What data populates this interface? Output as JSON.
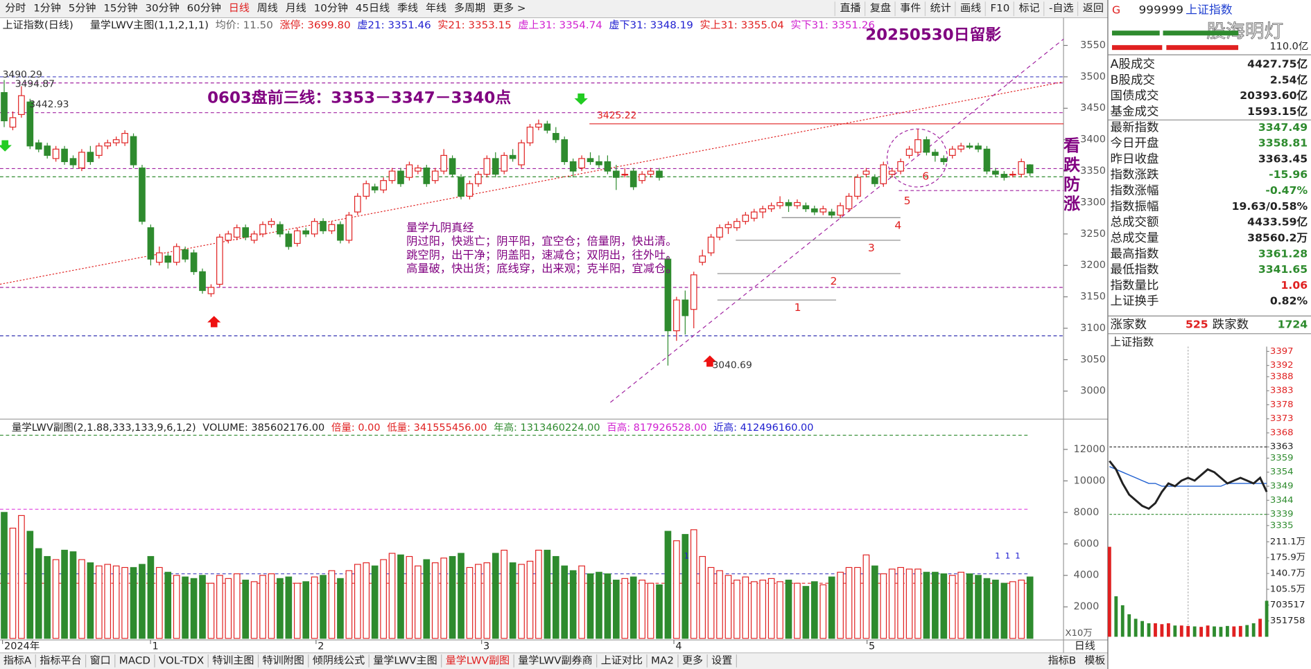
{
  "toolbar": {
    "left": [
      "分时",
      "1分钟",
      "5分钟",
      "15分钟",
      "30分钟",
      "60分钟",
      "日线",
      "周线",
      "月线",
      "10分钟",
      "45日线",
      "季线",
      "年线",
      "多周期",
      "更多 >"
    ],
    "right": [
      "直播",
      "复盘",
      "事件",
      "统计",
      "画线",
      "F10",
      "标记",
      "-自选",
      "返回"
    ]
  },
  "chart_header": {
    "title": "上证指数(日线)",
    "indicator": "量学LWV主图(1,1,2,1,1)",
    "items": [
      "均价: 11.50",
      "涨停: 3699.80",
      "虚21: 3351.46",
      "实21: 3353.15",
      "虚上31: 3354.74",
      "虚下31: 3348.19",
      "实上31: 3355.04",
      "实下31: 3351.26"
    ]
  },
  "main_chart": {
    "type": "candlestick",
    "ylim": [
      2958,
      3594
    ],
    "yticks": [
      3000,
      3050,
      3100,
      3150,
      3200,
      3250,
      3300,
      3350,
      3400,
      3450,
      3500,
      3550
    ],
    "up_color": "#e02020",
    "down_color": "#2e8b2e",
    "candles": [
      [
        3475,
        3495,
        3420,
        3430
      ],
      [
        3420,
        3445,
        3415,
        3435
      ],
      [
        3440,
        3485,
        3435,
        3470
      ],
      [
        3460,
        3465,
        3385,
        3390
      ],
      [
        3395,
        3400,
        3380,
        3385
      ],
      [
        3390,
        3395,
        3370,
        3375
      ],
      [
        3370,
        3390,
        3365,
        3385
      ],
      [
        3385,
        3390,
        3360,
        3365
      ],
      [
        3370,
        3375,
        3355,
        3360
      ],
      [
        3355,
        3385,
        3350,
        3380
      ],
      [
        3380,
        3390,
        3360,
        3365
      ],
      [
        3375,
        3395,
        3370,
        3390
      ],
      [
        3390,
        3400,
        3385,
        3395
      ],
      [
        3395,
        3405,
        3390,
        3400
      ],
      [
        3395,
        3415,
        3390,
        3410
      ],
      [
        3405,
        3410,
        3355,
        3360
      ],
      [
        3355,
        3360,
        3265,
        3270
      ],
      [
        3260,
        3265,
        3200,
        3210
      ],
      [
        3205,
        3230,
        3200,
        3220
      ],
      [
        3215,
        3220,
        3195,
        3205
      ],
      [
        3205,
        3235,
        3200,
        3230
      ],
      [
        3225,
        3230,
        3205,
        3210
      ],
      [
        3220,
        3225,
        3185,
        3190
      ],
      [
        3190,
        3195,
        3155,
        3160
      ],
      [
        3155,
        3170,
        3150,
        3165
      ],
      [
        3170,
        3250,
        3165,
        3245
      ],
      [
        3240,
        3255,
        3235,
        3250
      ],
      [
        3245,
        3265,
        3240,
        3260
      ],
      [
        3260,
        3265,
        3240,
        3245
      ],
      [
        3240,
        3255,
        3235,
        3250
      ],
      [
        3250,
        3270,
        3245,
        3265
      ],
      [
        3265,
        3275,
        3260,
        3270
      ],
      [
        3265,
        3270,
        3245,
        3250
      ],
      [
        3250,
        3255,
        3225,
        3230
      ],
      [
        3235,
        3260,
        3230,
        3255
      ],
      [
        3255,
        3260,
        3245,
        3250
      ],
      [
        3250,
        3275,
        3245,
        3270
      ],
      [
        3270,
        3275,
        3250,
        3255
      ],
      [
        3255,
        3270,
        3250,
        3265
      ],
      [
        3265,
        3270,
        3235,
        3240
      ],
      [
        3240,
        3285,
        3235,
        3280
      ],
      [
        3285,
        3315,
        3280,
        3310
      ],
      [
        3310,
        3335,
        3305,
        3330
      ],
      [
        3325,
        3330,
        3315,
        3320
      ],
      [
        3320,
        3340,
        3315,
        3335
      ],
      [
        3335,
        3355,
        3330,
        3350
      ],
      [
        3350,
        3355,
        3325,
        3330
      ],
      [
        3340,
        3365,
        3335,
        3360
      ],
      [
        3350,
        3360,
        3345,
        3355
      ],
      [
        3355,
        3360,
        3325,
        3330
      ],
      [
        3335,
        3355,
        3330,
        3350
      ],
      [
        3350,
        3385,
        3345,
        3375
      ],
      [
        3370,
        3375,
        3340,
        3345
      ],
      [
        3340,
        3345,
        3305,
        3310
      ],
      [
        3310,
        3335,
        3305,
        3330
      ],
      [
        3330,
        3350,
        3325,
        3345
      ],
      [
        3345,
        3375,
        3340,
        3370
      ],
      [
        3370,
        3380,
        3340,
        3345
      ],
      [
        3350,
        3380,
        3345,
        3375
      ],
      [
        3375,
        3385,
        3365,
        3370
      ],
      [
        3360,
        3400,
        3355,
        3395
      ],
      [
        3395,
        3425,
        3390,
        3420
      ],
      [
        3420,
        3432,
        3415,
        3425
      ],
      [
        3425,
        3430,
        3410,
        3415
      ],
      [
        3410,
        3420,
        3395,
        3400
      ],
      [
        3400,
        3405,
        3360,
        3365
      ],
      [
        3365,
        3370,
        3340,
        3350
      ],
      [
        3355,
        3375,
        3350,
        3370
      ],
      [
        3370,
        3380,
        3360,
        3365
      ],
      [
        3365,
        3375,
        3355,
        3360
      ],
      [
        3365,
        3375,
        3345,
        3350
      ],
      [
        3350,
        3360,
        3320,
        3340
      ],
      [
        3345,
        3355,
        3340,
        3345
      ],
      [
        3350,
        3355,
        3320,
        3325
      ],
      [
        3335,
        3350,
        3330,
        3345
      ],
      [
        3345,
        3355,
        3340,
        3350
      ],
      [
        3350,
        3355,
        3335,
        3340
      ],
      [
        3210,
        3215,
        3040.69,
        3096
      ],
      [
        3096,
        3150,
        3080,
        3145
      ],
      [
        3145,
        3160,
        3090,
        3120
      ],
      [
        3130,
        3190,
        3100,
        3185
      ],
      [
        3205,
        3225,
        3200,
        3215
      ],
      [
        3220,
        3250,
        3215,
        3245
      ],
      [
        3245,
        3265,
        3240,
        3260
      ],
      [
        3260,
        3270,
        3250,
        3265
      ],
      [
        3260,
        3275,
        3255,
        3270
      ],
      [
        3270,
        3285,
        3265,
        3280
      ],
      [
        3275,
        3290,
        3270,
        3285
      ],
      [
        3285,
        3295,
        3275,
        3290
      ],
      [
        3290,
        3300,
        3285,
        3295
      ],
      [
        3295,
        3310,
        3290,
        3300
      ],
      [
        3300,
        3305,
        3285,
        3295
      ],
      [
        3295,
        3305,
        3290,
        3300
      ],
      [
        3295,
        3300,
        3285,
        3290
      ],
      [
        3290,
        3295,
        3280,
        3285
      ],
      [
        3285,
        3295,
        3280,
        3290
      ],
      [
        3285,
        3290,
        3275,
        3280
      ],
      [
        3280,
        3300,
        3275,
        3295
      ],
      [
        3290,
        3315,
        3285,
        3310
      ],
      [
        3310,
        3345,
        3305,
        3340
      ],
      [
        3345,
        3355,
        3340,
        3350
      ],
      [
        3340,
        3345,
        3325,
        3330
      ],
      [
        3330,
        3365,
        3325,
        3360
      ],
      [
        3345,
        3355,
        3340,
        3350
      ],
      [
        3350,
        3370,
        3345,
        3365
      ],
      [
        3375,
        3390,
        3370,
        3385
      ],
      [
        3380,
        3417,
        3375,
        3400
      ],
      [
        3400,
        3405,
        3375,
        3380
      ],
      [
        3380,
        3385,
        3365,
        3375
      ],
      [
        3370,
        3375,
        3360,
        3365
      ],
      [
        3375,
        3390,
        3370,
        3385
      ],
      [
        3385,
        3395,
        3380,
        3390
      ],
      [
        3390,
        3395,
        3385,
        3388
      ],
      [
        3390,
        3395,
        3380,
        3385
      ],
      [
        3385,
        3390,
        3345,
        3350
      ],
      [
        3350,
        3355,
        3340,
        3345
      ],
      [
        3345,
        3350,
        3335,
        3340
      ],
      [
        3345,
        3350,
        3340,
        3345
      ],
      [
        3345,
        3370,
        3340,
        3365
      ],
      [
        3360,
        3361,
        3342,
        3347
      ]
    ],
    "hlines": [
      {
        "value": 3500,
        "color": "#4040c0"
      },
      {
        "value": 3490.29,
        "color": "#a020a0"
      },
      {
        "value": 3442.93,
        "color": "#a020a0"
      },
      {
        "value": 3425.22,
        "color": "#e02020"
      },
      {
        "value": 3354,
        "color": "#a020a0"
      },
      {
        "value": 3341,
        "color": "#2e8b2e"
      },
      {
        "value": 3319,
        "color": "#a020a0"
      },
      {
        "value": 3165,
        "color": "#a020a0"
      },
      {
        "value": 3088,
        "color": "#3030b0"
      }
    ],
    "trendlines": [
      [
        3170,
        3492
      ],
      [
        2982,
        3560
      ]
    ],
    "price_labels": [
      3490.29,
      3494.87,
      3442.93,
      3425.22,
      3040.69
    ],
    "levels": [
      {
        "label": "1",
        "value": 3145
      },
      {
        "label": "2",
        "value": 3187
      },
      {
        "label": "3",
        "value": 3240
      },
      {
        "label": "4",
        "value": 3276
      },
      {
        "label": "5",
        "value": 3315
      },
      {
        "label": "6",
        "value": 3354
      }
    ],
    "stamp": "20250530日留影",
    "headline": "0603盘前三线：3353－3347－3340点",
    "verse": [
      "量学九阴真经",
      "阴过阳，快逃亡；阴平阳，宜空仓；倍量阴，快出清。",
      "跳空阴，出干净；阴盖阳，速减仓；双阴出，往外吐。",
      "高量破，快出货；底线穿，出来观；克半阳，宜减仓。"
    ],
    "side_note": [
      "看",
      "跌",
      "防",
      "涨"
    ]
  },
  "volume_chart": {
    "header": [
      "量学LWV副图(2,1.88,333,133,9,6,1,2)",
      "VOLUME: 385602176.00",
      "倍量: 0.00",
      "低量: 341555456.00",
      "年高: 1313460224.00",
      "百高: 817926528.00",
      "近高: 412496160.00"
    ],
    "ylim": [
      0,
      13000
    ],
    "yticks": [
      2000,
      4000,
      6000,
      8000,
      10000,
      12000
    ],
    "unit": "X10万",
    "values": [
      8000,
      7000,
      7800,
      6800,
      5700,
      5200,
      5000,
      5600,
      5500,
      5000,
      4800,
      4600,
      4700,
      4600,
      4500,
      4500,
      4700,
      5200,
      4500,
      4200,
      4000,
      3900,
      3800,
      4000,
      3500,
      4000,
      3800,
      4100,
      3700,
      3600,
      4000,
      4100,
      3800,
      3900,
      3500,
      3600,
      3900,
      4000,
      4300,
      3800,
      4300,
      4700,
      4800,
      4600,
      5000,
      5400,
      5300,
      5200,
      4600,
      5000,
      4800,
      5100,
      5200,
      5400,
      4500,
      4700,
      4800,
      5400,
      5600,
      4800,
      4700,
      4900,
      5600,
      5600,
      5200,
      4600,
      4300,
      4600,
      4100,
      4200,
      4100,
      3700,
      3800,
      3900,
      3700,
      3500,
      3400,
      6800,
      6200,
      6600,
      6900,
      5200,
      4500,
      4300,
      4000,
      3700,
      3900,
      3600,
      3700,
      3800,
      3600,
      3700,
      3500,
      3300,
      3600,
      3400,
      3900,
      4200,
      4500,
      4500,
      5300,
      4600,
      4100,
      4400,
      4500,
      4400,
      4400,
      4200,
      4200,
      4100,
      4000,
      4200,
      4100,
      4000,
      3800,
      3700,
      3500,
      3600,
      3700,
      3900
    ],
    "hlines": [
      {
        "value": 12900,
        "color": "#2e8b2e"
      },
      {
        "value": 8200,
        "color": "#e040e0"
      },
      {
        "value": 4100,
        "color": "#4040c0"
      },
      {
        "value": 3500,
        "color": "#e02020"
      }
    ],
    "flags": [
      "1",
      "1",
      "1",
      "1"
    ]
  },
  "date_axis": {
    "labels": [
      "2024年",
      "1",
      "2",
      "3",
      "4",
      "5"
    ],
    "period": "日线"
  },
  "bottom_tabs": [
    "指标A",
    "指标平台",
    "窗口",
    "MACD",
    "VOL-TDX",
    "特训主图",
    "特训附图",
    "倾阴线公式",
    "量学LWV主图",
    "量学LWV副图",
    "量学LWV副券商",
    "上证对比",
    "MA2",
    "更多",
    "设置"
  ],
  "bottom_right_tabs": [
    "指标B",
    "模板"
  ],
  "quote": {
    "prefix": "G",
    "code": "999999",
    "name": "上证指数",
    "watermark": "股海明灯",
    "bar_label": "110.0亿",
    "rows": [
      [
        "A股成交",
        "4427.75亿"
      ],
      [
        "B股成交",
        "2.54亿"
      ],
      [
        "国债成交",
        "20393.60亿"
      ],
      [
        "基金成交",
        "1593.15亿"
      ],
      [
        "最新指数",
        "3347.49"
      ],
      [
        "今日开盘",
        "3358.81"
      ],
      [
        "昨日收盘",
        "3363.45"
      ],
      [
        "指数涨跌",
        "-15.96"
      ],
      [
        "指数涨幅",
        "-0.47%"
      ],
      [
        "指数振幅",
        "19.63/0.58%"
      ],
      [
        "总成交额",
        "4433.59亿"
      ],
      [
        "总成交量",
        "38560.2万"
      ],
      [
        "最高指数",
        "3361.28"
      ],
      [
        "最低指数",
        "3341.65"
      ],
      [
        "指数量比",
        "1.06"
      ],
      [
        "上证换手",
        "0.82%"
      ]
    ],
    "advance_label": "涨家数",
    "advance": 525,
    "decline_label": "跌家数",
    "decline": 1724
  },
  "intraday": {
    "type": "line",
    "title": "上证指数",
    "ylim": [
      3333,
      3399
    ],
    "yticks": [
      3397,
      3392,
      3388,
      3383,
      3378,
      3373,
      3368,
      3363,
      3359,
      3354,
      3349,
      3344,
      3339,
      3335
    ],
    "price": [
      3358,
      3355,
      3350,
      3346,
      3344,
      3342,
      3341,
      3343,
      3347,
      3350,
      3349,
      3351,
      3352,
      3351,
      3353,
      3355,
      3354,
      3352,
      3350,
      3351,
      3352,
      3351,
      3350,
      3352,
      3347
    ],
    "avg": [
      3356,
      3355,
      3354,
      3353,
      3352,
      3351,
      3350,
      3350,
      3349,
      3349,
      3349,
      3349,
      3349,
      3349,
      3349,
      3349,
      3349,
      3349,
      3350,
      3350,
      3350,
      3350,
      3350,
      3350,
      3350
    ],
    "vol_ylim": [
      0,
      2240000
    ],
    "vol_yticks": [
      {
        "value": 2111000,
        "label": "211.1万"
      },
      {
        "value": 1759000,
        "label": "175.9万"
      },
      {
        "value": 1407000,
        "label": "140.7万"
      },
      {
        "value": 1055000,
        "label": "105.5万"
      },
      703517,
      351758
    ],
    "volume": [
      2000000,
      900000,
      700000,
      500000,
      400000,
      350000,
      300000,
      300000,
      280000,
      300000,
      250000,
      250000,
      240000,
      230000,
      220000,
      250000,
      230000,
      220000,
      240000,
      230000,
      240000,
      260000,
      300000,
      400000,
      800000
    ]
  }
}
